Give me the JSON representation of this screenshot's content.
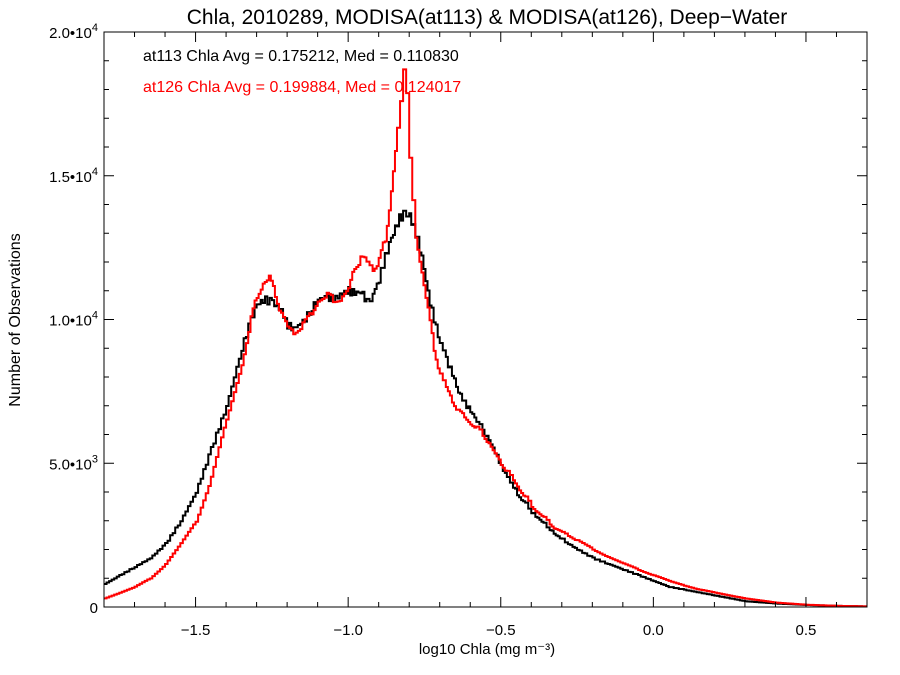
{
  "chart_data": {
    "type": "line",
    "title": "Chla, 2010289, MODISA(at113) & MODISA(at126), Deep−Water",
    "xlabel": "log10 Chla (mg m⁻³)",
    "ylabel": "Number of Observations",
    "xlim": [
      -1.8,
      0.7
    ],
    "ylim": [
      0,
      20000
    ],
    "grid": false,
    "x_ticks": [
      {
        "value": -1.5,
        "label": "−1.5"
      },
      {
        "value": -1.0,
        "label": "−1.0"
      },
      {
        "value": -0.5,
        "label": "−0.5"
      },
      {
        "value": 0.0,
        "label": "0.0"
      },
      {
        "value": 0.5,
        "label": "0.5"
      }
    ],
    "y_ticks": [
      {
        "value": 0,
        "mantissa": "0",
        "exp": ""
      },
      {
        "value": 5000,
        "mantissa": "5.0•10",
        "exp": "3"
      },
      {
        "value": 10000,
        "mantissa": "1.0•10",
        "exp": "4"
      },
      {
        "value": 15000,
        "mantissa": "1.5•10",
        "exp": "4"
      },
      {
        "value": 20000,
        "mantissa": "2.0•10",
        "exp": "4"
      }
    ],
    "annotations": [
      {
        "text": "at113 Chla Avg = 0.175212, Med = 0.110830",
        "color": "#000000"
      },
      {
        "text": "at126 Chla Avg = 0.199884, Med = 0.124017",
        "color": "#ff0000"
      }
    ],
    "series": [
      {
        "color": "#000000",
        "x": [
          -1.8,
          -1.75,
          -1.7,
          -1.65,
          -1.6,
          -1.55,
          -1.5,
          -1.45,
          -1.4,
          -1.35,
          -1.32,
          -1.3,
          -1.28,
          -1.25,
          -1.22,
          -1.2,
          -1.18,
          -1.15,
          -1.12,
          -1.1,
          -1.07,
          -1.05,
          -1.02,
          -1.0,
          -0.98,
          -0.96,
          -0.94,
          -0.92,
          -0.9,
          -0.88,
          -0.86,
          -0.84,
          -0.82,
          -0.8,
          -0.78,
          -0.76,
          -0.74,
          -0.72,
          -0.7,
          -0.68,
          -0.66,
          -0.64,
          -0.62,
          -0.6,
          -0.58,
          -0.56,
          -0.54,
          -0.52,
          -0.5,
          -0.48,
          -0.46,
          -0.44,
          -0.42,
          -0.4,
          -0.38,
          -0.36,
          -0.34,
          -0.32,
          -0.3,
          -0.28,
          -0.25,
          -0.2,
          -0.15,
          -0.1,
          -0.05,
          0.0,
          0.05,
          0.1,
          0.15,
          0.2,
          0.3,
          0.4,
          0.5,
          0.6,
          0.7
        ],
        "values": [
          800,
          1100,
          1400,
          1700,
          2200,
          3000,
          4000,
          5500,
          7000,
          9000,
          10000,
          10500,
          10700,
          10600,
          10300,
          9800,
          9700,
          9900,
          10400,
          10700,
          10800,
          10700,
          10900,
          11000,
          10900,
          11000,
          10600,
          10900,
          11400,
          12200,
          12800,
          13400,
          13700,
          13600,
          13000,
          12200,
          10900,
          10000,
          9200,
          8600,
          8100,
          7500,
          7100,
          6800,
          6500,
          6100,
          5800,
          5400,
          4900,
          4500,
          4200,
          3800,
          3600,
          3300,
          3100,
          2900,
          2700,
          2500,
          2350,
          2200,
          2000,
          1700,
          1500,
          1300,
          1100,
          900,
          700,
          600,
          500,
          400,
          200,
          120,
          70,
          40,
          20
        ]
      },
      {
        "color": "#ff0000",
        "x": [
          -1.8,
          -1.75,
          -1.7,
          -1.65,
          -1.6,
          -1.55,
          -1.5,
          -1.45,
          -1.4,
          -1.35,
          -1.32,
          -1.3,
          -1.28,
          -1.26,
          -1.24,
          -1.22,
          -1.2,
          -1.18,
          -1.15,
          -1.12,
          -1.1,
          -1.07,
          -1.05,
          -1.02,
          -1.0,
          -0.98,
          -0.96,
          -0.94,
          -0.92,
          -0.9,
          -0.88,
          -0.86,
          -0.84,
          -0.83,
          -0.82,
          -0.81,
          -0.8,
          -0.79,
          -0.78,
          -0.76,
          -0.74,
          -0.72,
          -0.7,
          -0.68,
          -0.66,
          -0.64,
          -0.62,
          -0.6,
          -0.58,
          -0.56,
          -0.54,
          -0.52,
          -0.5,
          -0.48,
          -0.46,
          -0.44,
          -0.42,
          -0.4,
          -0.38,
          -0.36,
          -0.34,
          -0.32,
          -0.3,
          -0.28,
          -0.25,
          -0.2,
          -0.15,
          -0.1,
          -0.05,
          0.0,
          0.05,
          0.1,
          0.15,
          0.2,
          0.3,
          0.4,
          0.5,
          0.6,
          0.7
        ],
        "values": [
          300,
          500,
          700,
          1000,
          1500,
          2200,
          3000,
          4500,
          6500,
          8500,
          10000,
          10800,
          11300,
          11400,
          10900,
          10200,
          9700,
          9600,
          9800,
          10200,
          10700,
          10800,
          10700,
          10800,
          11000,
          11900,
          12100,
          12000,
          11800,
          12000,
          12800,
          14500,
          16500,
          17800,
          18600,
          17800,
          15800,
          14000,
          12900,
          11700,
          10300,
          9000,
          8100,
          7600,
          7200,
          6800,
          6600,
          6400,
          6200,
          6000,
          5700,
          5300,
          5000,
          4700,
          4400,
          4100,
          3800,
          3500,
          3300,
          3100,
          2900,
          2700,
          2600,
          2500,
          2300,
          2000,
          1750,
          1500,
          1300,
          1100,
          900,
          750,
          600,
          500,
          300,
          150,
          80,
          40,
          20
        ]
      }
    ]
  }
}
